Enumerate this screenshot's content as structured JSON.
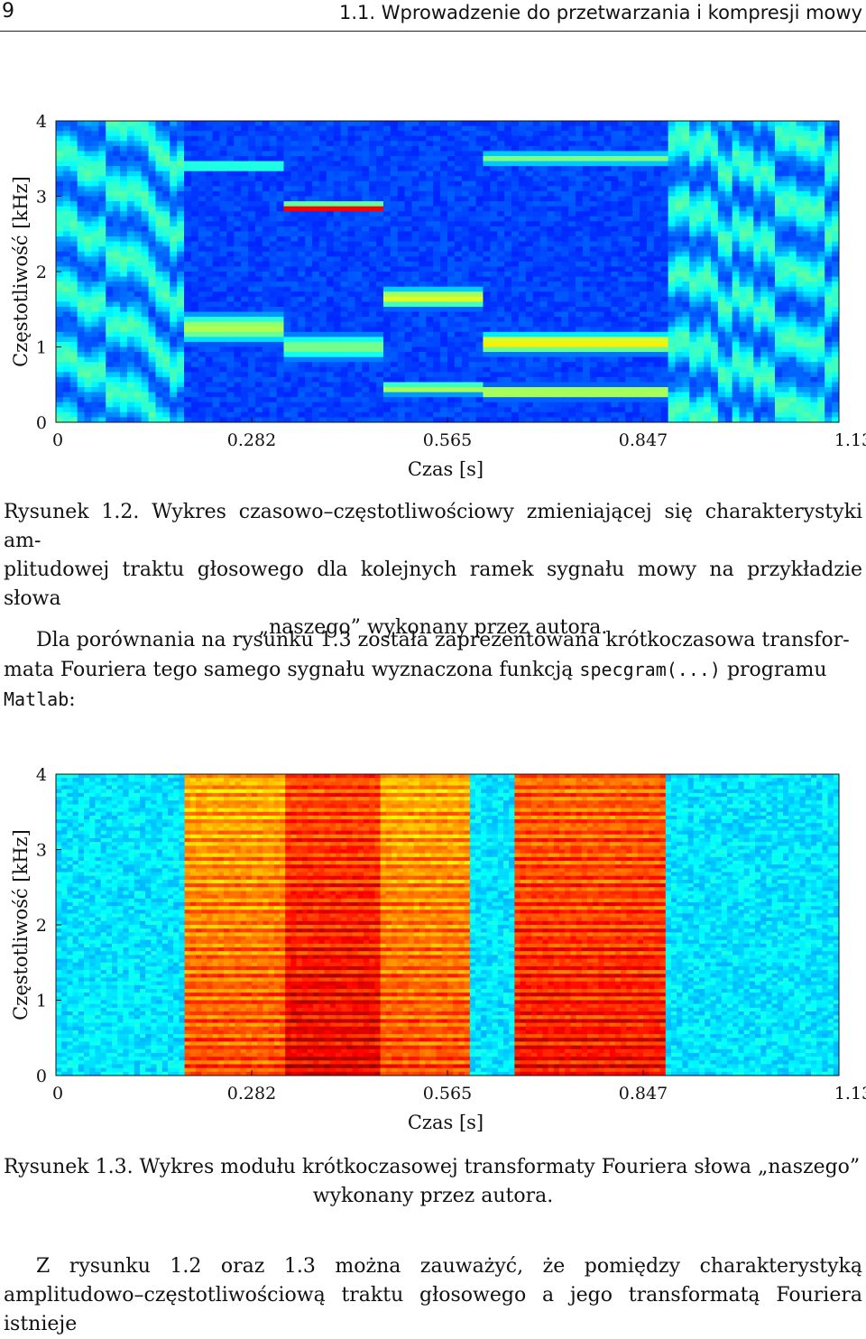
{
  "header": {
    "page_number": "9",
    "running_title": "1.1. Wprowadzenie do przetwarzania i kompresji mowy"
  },
  "figure1": {
    "caption_line1": "Rysunek 1.2. Wykres czasowo–częstotliwościowy zmieniającej się charakterystyki am-",
    "caption_line2": "plitudowej traktu głosowego dla kolejnych ramek sygnału mowy na przykładzie słowa",
    "caption_line3": "„naszego” wykonany przez autora.",
    "chart_data": {
      "type": "heatmap",
      "title": "",
      "xlabel": "Czas [s]",
      "ylabel": "Częstotliwość [kHz]",
      "x_ticks": [
        "0",
        "0.282",
        "0.565",
        "0.847",
        "1.13"
      ],
      "y_ticks": [
        "0",
        "1",
        "2",
        "3",
        "4"
      ],
      "xlim": [
        0,
        1.13
      ],
      "ylim": [
        0,
        4
      ],
      "colormap": "jet",
      "bands": [
        {
          "t0": 0.185,
          "t1": 0.33,
          "f": 1.25,
          "w": 0.22,
          "v": 0.55
        },
        {
          "t0": 0.185,
          "t1": 0.33,
          "f": 3.4,
          "w": 0.1,
          "v": 0.45
        },
        {
          "t0": 0.33,
          "t1": 0.47,
          "f": 2.85,
          "w": 0.06,
          "v": 0.95
        },
        {
          "t0": 0.33,
          "t1": 0.47,
          "f": 1.0,
          "w": 0.2,
          "v": 0.5
        },
        {
          "t0": 0.47,
          "t1": 0.62,
          "f": 1.65,
          "w": 0.15,
          "v": 0.6
        },
        {
          "t0": 0.47,
          "t1": 0.62,
          "f": 0.45,
          "w": 0.1,
          "v": 0.55
        },
        {
          "t0": 0.62,
          "t1": 0.88,
          "f": 1.05,
          "w": 0.15,
          "v": 0.65
        },
        {
          "t0": 0.62,
          "t1": 0.88,
          "f": 0.4,
          "w": 0.1,
          "v": 0.6
        },
        {
          "t0": 0.62,
          "t1": 0.88,
          "f": 3.5,
          "w": 0.1,
          "v": 0.5
        }
      ]
    }
  },
  "paragraph1": {
    "line1": "Dla porównania na rysunku 1.3 została zaprezentowana krótkoczasowa transfor-",
    "line2_a": "mata Fouriera tego samego sygnału wyznaczona funkcją ",
    "line2_code": "specgram(...)",
    "line2_b": " programu",
    "line3_code": "Matlab",
    "line3_b": ":"
  },
  "figure2": {
    "caption_line1": "Rysunek 1.3. Wykres modułu krótkoczasowej transformaty Fouriera słowa „naszego”",
    "caption_line2": "wykonany przez autora.",
    "chart_data": {
      "type": "heatmap",
      "title": "",
      "xlabel": "Czas [s]",
      "ylabel": "Częstotliwość [kHz]",
      "x_ticks": [
        "0",
        "0.282",
        "0.565",
        "0.847",
        "1.13"
      ],
      "y_ticks": [
        "0",
        "1",
        "2",
        "3",
        "4"
      ],
      "xlim": [
        0,
        1.13
      ],
      "ylim": [
        0,
        4
      ],
      "colormap": "jet",
      "voiced_segments": [
        {
          "t0": 0.185,
          "t1": 0.33,
          "v": 0.75
        },
        {
          "t0": 0.33,
          "t1": 0.47,
          "v": 0.85
        },
        {
          "t0": 0.47,
          "t1": 0.6,
          "v": 0.75
        },
        {
          "t0": 0.66,
          "t1": 0.88,
          "v": 0.82
        }
      ]
    }
  },
  "paragraph2": {
    "line1": "Z rysunku 1.2 oraz 1.3 można zauważyć, że pomiędzy charakterystyką",
    "line2": "amplitudowo–częstotliwościową traktu głosowego a jego transformatą Fouriera istnieje"
  }
}
